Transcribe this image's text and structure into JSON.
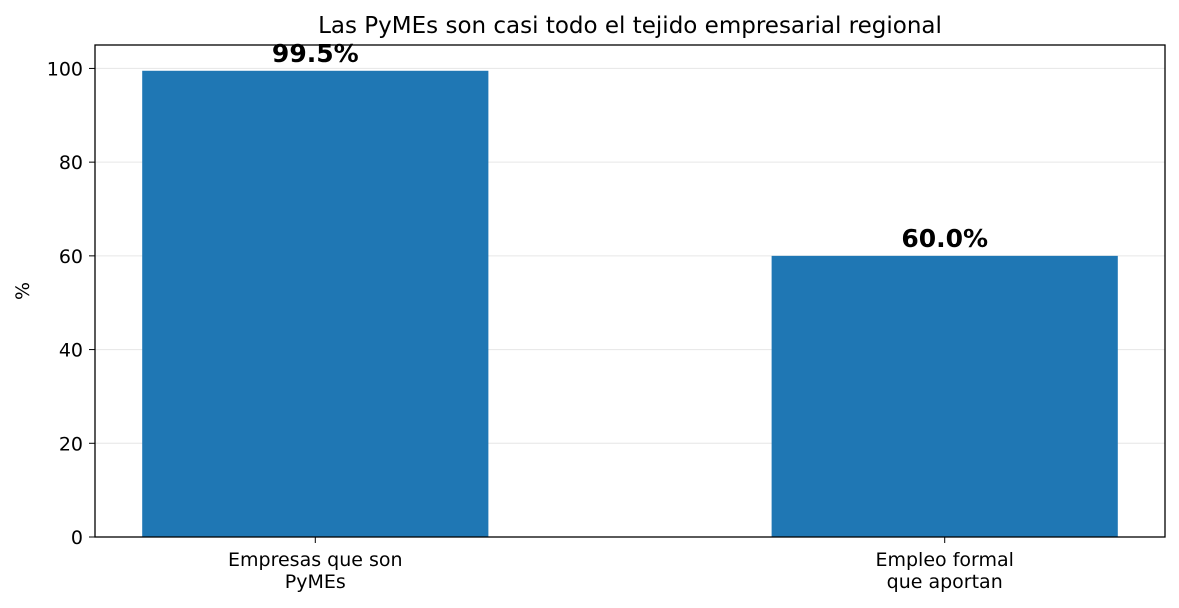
{
  "chart_data": {
    "type": "bar",
    "title": "Las PyMEs son casi todo el tejido empresarial regional",
    "y_label": "%",
    "categories": [
      "Empresas que son\nPyMEs",
      "Empleo formal\nque aportan"
    ],
    "values": [
      99.5,
      60.0
    ],
    "value_labels": [
      "99.5%",
      "60.0%"
    ],
    "color": "#1f77b4",
    "ylim": [
      0,
      105
    ],
    "yticks": [
      0,
      20,
      40,
      60,
      80,
      100
    ],
    "grid": true
  }
}
